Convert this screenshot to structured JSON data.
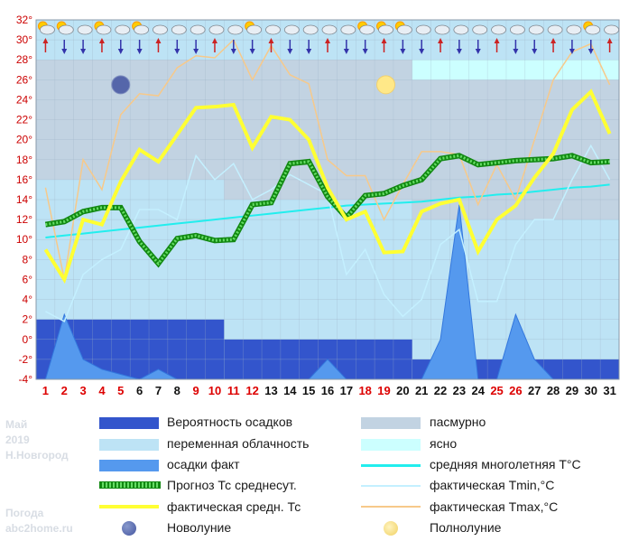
{
  "chart_data": {
    "type": "line",
    "ylim": [
      -4,
      32
    ],
    "y_ticks": [
      "32°",
      "30°",
      "28°",
      "26°",
      "24°",
      "22°",
      "20°",
      "18°",
      "16°",
      "14°",
      "12°",
      "10°",
      "8°",
      "6°",
      "4°",
      "2°",
      "0°",
      "-2°",
      "-4°"
    ],
    "days": [
      1,
      2,
      3,
      4,
      5,
      6,
      7,
      8,
      9,
      10,
      11,
      12,
      13,
      14,
      15,
      16,
      17,
      18,
      19,
      20,
      21,
      22,
      23,
      24,
      25,
      26,
      27,
      28,
      29,
      30,
      31
    ],
    "weekend_days": [
      1,
      2,
      3,
      4,
      5,
      9,
      10,
      11,
      12,
      18,
      19,
      25,
      26
    ],
    "cloud_bands": [
      {
        "from_day": 1,
        "to_day": 10,
        "top": 28,
        "bottom": 16,
        "kind": "overcast"
      },
      {
        "from_day": 11,
        "to_day": 20,
        "top": 28,
        "bottom": 14,
        "kind": "overcast"
      },
      {
        "from_day": 21,
        "to_day": 31,
        "top": 26,
        "bottom": 12,
        "kind": "overcast"
      },
      {
        "from_day": 21,
        "to_day": 31,
        "top": 28,
        "bottom": 26,
        "kind": "clear"
      }
    ],
    "precip_probability_bands": [
      {
        "from_day": 1,
        "to_day": 10,
        "level": 2
      },
      {
        "from_day": 11,
        "to_day": 20,
        "level": 0
      },
      {
        "from_day": 21,
        "to_day": 31,
        "level": -2
      }
    ],
    "series": [
      {
        "name": "осадки факт",
        "values": [
          -4,
          2.5,
          -2,
          -3,
          -3.5,
          -4,
          -3,
          -4,
          -4,
          -4,
          -4,
          -4,
          -4,
          -4,
          -4,
          -2,
          -4,
          -4,
          -4,
          -4,
          -4,
          0,
          13.5,
          -4,
          -4,
          2.5,
          -2,
          -4,
          -4,
          -4,
          -4
        ]
      },
      {
        "name": "средняя многолетняя T°C",
        "values": [
          10.2,
          10.4,
          10.6,
          10.8,
          11,
          11.2,
          11.4,
          11.6,
          11.8,
          12,
          12.2,
          12.4,
          12.6,
          12.8,
          13,
          13.2,
          13.4,
          13.5,
          13.6,
          13.7,
          13.8,
          14,
          14.2,
          14.3,
          14.5,
          14.6,
          14.8,
          15,
          15.2,
          15.3,
          15.5
        ]
      },
      {
        "name": "фактическая Tmin,°C",
        "values": [
          2.8,
          1.8,
          6.5,
          8,
          9,
          13,
          13,
          12,
          18.4,
          16,
          17.6,
          14,
          15,
          16.5,
          15.5,
          14.5,
          6.5,
          9,
          4.5,
          2.3,
          4,
          9.5,
          11,
          3.8,
          3.8,
          9.5,
          12,
          12,
          16,
          19.4,
          16
        ]
      },
      {
        "name": "фактическая Tmax,°C",
        "values": [
          15.2,
          6,
          18,
          15,
          22.5,
          24.6,
          24.4,
          27.2,
          28.4,
          28.2,
          30,
          26,
          29.4,
          26.5,
          25.6,
          18,
          16.4,
          16.4,
          12,
          15.5,
          18.8,
          18.8,
          18.5,
          13.5,
          17.5,
          14,
          20,
          26,
          28.8,
          29.6,
          25.5
        ]
      },
      {
        "name": "Прогноз Тс среднесут.",
        "values": [
          11.5,
          11.8,
          12.8,
          13.2,
          13.2,
          9.8,
          7.6,
          10.1,
          10.4,
          9.9,
          10,
          13.5,
          13.7,
          17.6,
          17.8,
          14.3,
          12.2,
          14.4,
          14.6,
          15.4,
          16,
          18.1,
          18.4,
          17.5,
          17.7,
          17.9,
          18,
          18.1,
          18.4,
          17.7,
          17.8
        ]
      },
      {
        "name": "фактическая средн. Тс",
        "values": [
          9,
          6,
          12,
          11.5,
          15.8,
          19,
          17.8,
          20.5,
          23.2,
          23.3,
          23.5,
          19.2,
          22.3,
          22,
          20,
          15.2,
          12,
          12.8,
          8.7,
          8.8,
          12.8,
          13.6,
          14,
          8.8,
          12,
          13.4,
          16.2,
          18.6,
          23,
          24.8,
          20.6
        ]
      }
    ],
    "moon_phases": [
      {
        "label": "Новолуние",
        "day": 5
      },
      {
        "label": "Полнолуние",
        "day": 19
      }
    ],
    "colors": {
      "precip_probability": "#3355cc",
      "variable_cloud": "#bde3f5",
      "precip_fact": "#5599ee",
      "forecast_avg": "#22aa22",
      "actual_avg": "#ffff33",
      "overcast": "#c2d3e2",
      "clear": "#ccffff",
      "climate_avg": "#22eeee",
      "tmin": "#c4f0ff",
      "tmax": "#f7c98a",
      "new_moon": "#5566aa",
      "full_moon": "#ffe888"
    }
  },
  "legend": {
    "left": [
      "Вероятность осадков",
      "переменная облачность",
      "осадки факт",
      "Прогноз Тс среднесут.",
      "фактическая средн. Тс",
      "Новолуние"
    ],
    "right": [
      "пасмурно",
      "ясно",
      "средняя многолетняя T°C",
      "фактическая Tmin,°C",
      "фактическая Tmax,°C",
      "Полнолуние"
    ]
  },
  "side": {
    "month": "Май",
    "year": "2019",
    "city": "Н.Новгород",
    "site_1": "Погода",
    "site_2": "abc2home.ru"
  }
}
